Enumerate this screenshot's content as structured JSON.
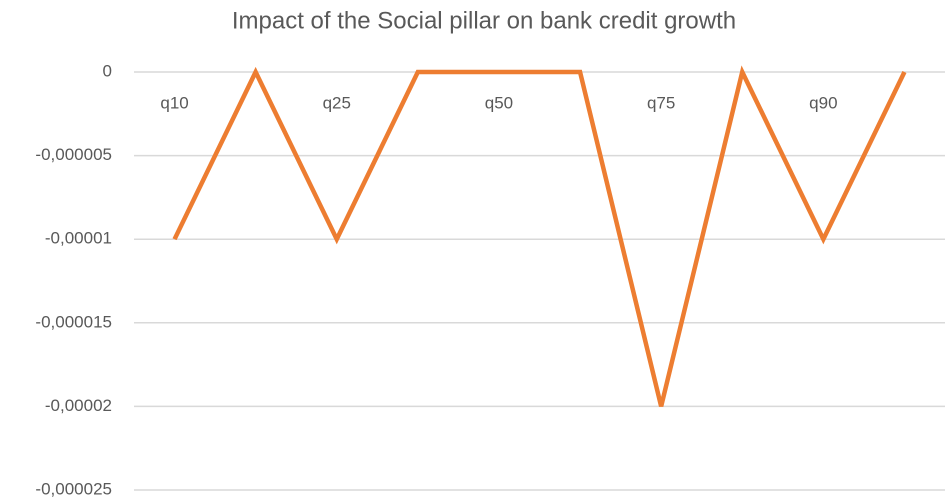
{
  "chart_data": {
    "type": "line",
    "title": "Impact of the Social pillar on bank credit growth",
    "categories": [
      "q10",
      null,
      "q25",
      null,
      "q50",
      null,
      "q75",
      null,
      "q90",
      null
    ],
    "values": [
      -1e-05,
      0,
      -1e-05,
      0,
      0,
      0,
      -2e-05,
      0,
      -1e-05,
      0
    ],
    "color": "#ed7d31",
    "ylim": [
      -2.5e-05,
      0
    ],
    "yticks": [
      0,
      {
        "value": -5e-06,
        "label": "-0,000005"
      },
      {
        "value": -1e-05,
        "label": "-0,00001"
      },
      {
        "value": -1.5e-05,
        "label": "-0,000015"
      },
      {
        "value": -2e-05,
        "label": "-0,00002"
      },
      {
        "value": -2.5e-05,
        "label": "-0,000025"
      }
    ],
    "grid": true
  }
}
